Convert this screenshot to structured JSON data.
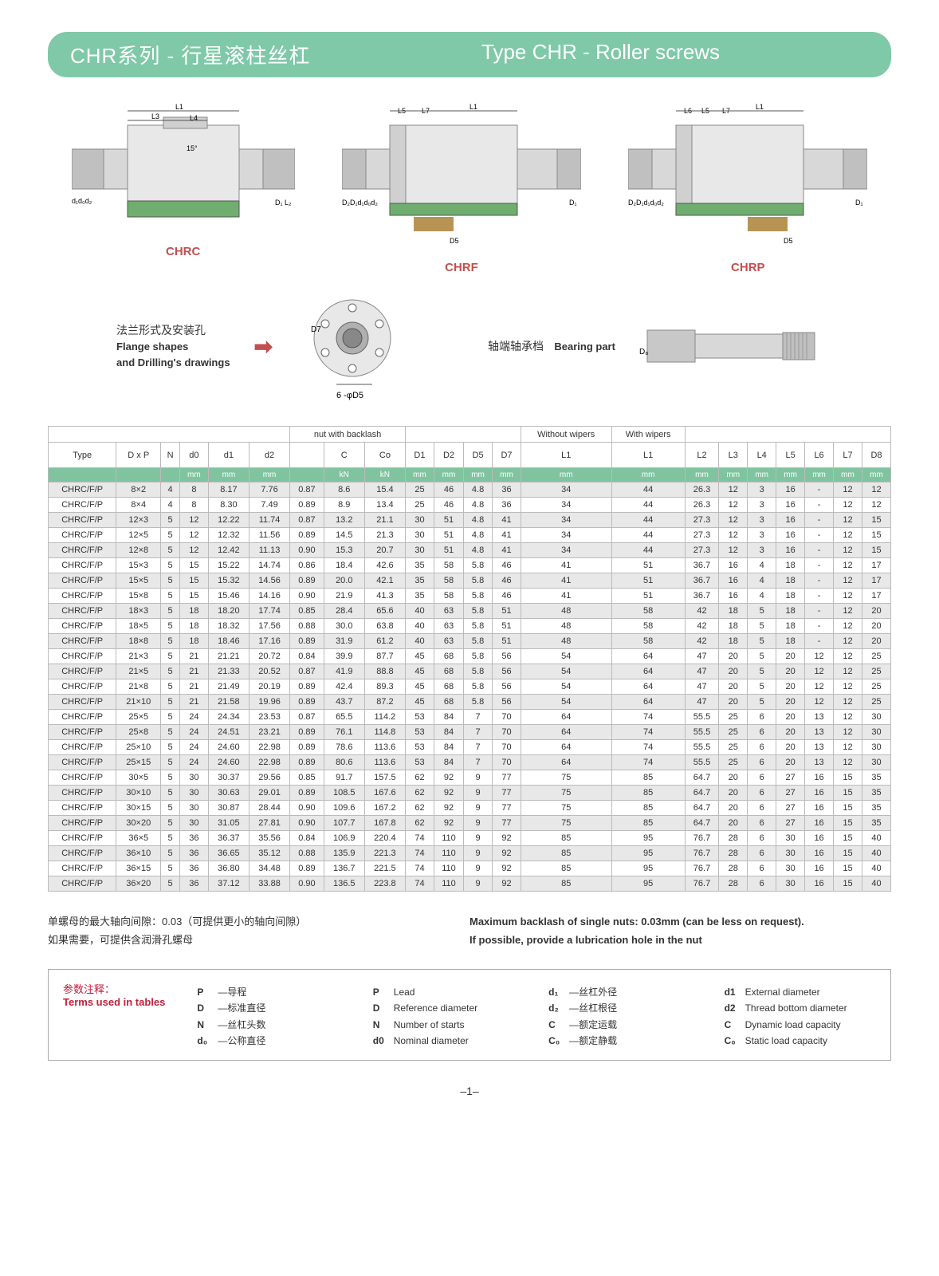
{
  "banner": {
    "cn": "CHR系列 - 行星滚柱丝杠",
    "en": "Type CHR - Roller screws"
  },
  "diagram_labels": {
    "chrc": "CHRC",
    "chrf": "CHRF",
    "chrp": "CHRP"
  },
  "flange": {
    "cn": "法兰形式及安装孔",
    "en1": "Flange shapes",
    "en2": "and Drilling's drawings"
  },
  "bearing": {
    "cn": "轴端轴承档",
    "en": "Bearing part"
  },
  "flange_dim_label": "6 -φD5",
  "table": {
    "group_headers": {
      "nut_backlash": "nut with backlash",
      "without_wipers": "Without wipers",
      "with_wipers": "With wipers"
    },
    "columns": [
      "Type",
      "D x P",
      "N",
      "d0",
      "d1",
      "d2",
      "",
      "C",
      "Co",
      "D1",
      "D2",
      "D5",
      "D7",
      "L1",
      "L1",
      "L2",
      "L3",
      "L4",
      "L5",
      "L6",
      "L7",
      "D8"
    ],
    "units": [
      "",
      "",
      "",
      "mm",
      "mm",
      "mm",
      "",
      "kN",
      "kN",
      "mm",
      "mm",
      "mm",
      "mm",
      "mm",
      "mm",
      "mm",
      "mm",
      "mm",
      "mm",
      "mm",
      "mm",
      "mm"
    ],
    "rows": [
      [
        "CHRC/F/P",
        "8×2",
        "4",
        "8",
        "8.17",
        "7.76",
        "0.87",
        "8.6",
        "15.4",
        "25",
        "46",
        "4.8",
        "36",
        "34",
        "44",
        "26.3",
        "12",
        "3",
        "16",
        "-",
        "12",
        "12"
      ],
      [
        "CHRC/F/P",
        "8×4",
        "4",
        "8",
        "8.30",
        "7.49",
        "0.89",
        "8.9",
        "13.4",
        "25",
        "46",
        "4.8",
        "36",
        "34",
        "44",
        "26.3",
        "12",
        "3",
        "16",
        "-",
        "12",
        "12"
      ],
      [
        "CHRC/F/P",
        "12×3",
        "5",
        "12",
        "12.22",
        "11.74",
        "0.87",
        "13.2",
        "21.1",
        "30",
        "51",
        "4.8",
        "41",
        "34",
        "44",
        "27.3",
        "12",
        "3",
        "16",
        "-",
        "12",
        "15"
      ],
      [
        "CHRC/F/P",
        "12×5",
        "5",
        "12",
        "12.32",
        "11.56",
        "0.89",
        "14.5",
        "21.3",
        "30",
        "51",
        "4.8",
        "41",
        "34",
        "44",
        "27.3",
        "12",
        "3",
        "16",
        "-",
        "12",
        "15"
      ],
      [
        "CHRC/F/P",
        "12×8",
        "5",
        "12",
        "12.42",
        "11.13",
        "0.90",
        "15.3",
        "20.7",
        "30",
        "51",
        "4.8",
        "41",
        "34",
        "44",
        "27.3",
        "12",
        "3",
        "16",
        "-",
        "12",
        "15"
      ],
      [
        "CHRC/F/P",
        "15×3",
        "5",
        "15",
        "15.22",
        "14.74",
        "0.86",
        "18.4",
        "42.6",
        "35",
        "58",
        "5.8",
        "46",
        "41",
        "51",
        "36.7",
        "16",
        "4",
        "18",
        "-",
        "12",
        "17"
      ],
      [
        "CHRC/F/P",
        "15×5",
        "5",
        "15",
        "15.32",
        "14.56",
        "0.89",
        "20.0",
        "42.1",
        "35",
        "58",
        "5.8",
        "46",
        "41",
        "51",
        "36.7",
        "16",
        "4",
        "18",
        "-",
        "12",
        "17"
      ],
      [
        "CHRC/F/P",
        "15×8",
        "5",
        "15",
        "15.46",
        "14.16",
        "0.90",
        "21.9",
        "41.3",
        "35",
        "58",
        "5.8",
        "46",
        "41",
        "51",
        "36.7",
        "16",
        "4",
        "18",
        "-",
        "12",
        "17"
      ],
      [
        "CHRC/F/P",
        "18×3",
        "5",
        "18",
        "18.20",
        "17.74",
        "0.85",
        "28.4",
        "65.6",
        "40",
        "63",
        "5.8",
        "51",
        "48",
        "58",
        "42",
        "18",
        "5",
        "18",
        "-",
        "12",
        "20"
      ],
      [
        "CHRC/F/P",
        "18×5",
        "5",
        "18",
        "18.32",
        "17.56",
        "0.88",
        "30.0",
        "63.8",
        "40",
        "63",
        "5.8",
        "51",
        "48",
        "58",
        "42",
        "18",
        "5",
        "18",
        "-",
        "12",
        "20"
      ],
      [
        "CHRC/F/P",
        "18×8",
        "5",
        "18",
        "18.46",
        "17.16",
        "0.89",
        "31.9",
        "61.2",
        "40",
        "63",
        "5.8",
        "51",
        "48",
        "58",
        "42",
        "18",
        "5",
        "18",
        "-",
        "12",
        "20"
      ],
      [
        "CHRC/F/P",
        "21×3",
        "5",
        "21",
        "21.21",
        "20.72",
        "0.84",
        "39.9",
        "87.7",
        "45",
        "68",
        "5.8",
        "56",
        "54",
        "64",
        "47",
        "20",
        "5",
        "20",
        "12",
        "12",
        "25"
      ],
      [
        "CHRC/F/P",
        "21×5",
        "5",
        "21",
        "21.33",
        "20.52",
        "0.87",
        "41.9",
        "88.8",
        "45",
        "68",
        "5.8",
        "56",
        "54",
        "64",
        "47",
        "20",
        "5",
        "20",
        "12",
        "12",
        "25"
      ],
      [
        "CHRC/F/P",
        "21×8",
        "5",
        "21",
        "21.49",
        "20.19",
        "0.89",
        "42.4",
        "89.3",
        "45",
        "68",
        "5.8",
        "56",
        "54",
        "64",
        "47",
        "20",
        "5",
        "20",
        "12",
        "12",
        "25"
      ],
      [
        "CHRC/F/P",
        "21×10",
        "5",
        "21",
        "21.58",
        "19.96",
        "0.89",
        "43.7",
        "87.2",
        "45",
        "68",
        "5.8",
        "56",
        "54",
        "64",
        "47",
        "20",
        "5",
        "20",
        "12",
        "12",
        "25"
      ],
      [
        "CHRC/F/P",
        "25×5",
        "5",
        "24",
        "24.34",
        "23.53",
        "0.87",
        "65.5",
        "114.2",
        "53",
        "84",
        "7",
        "70",
        "64",
        "74",
        "55.5",
        "25",
        "6",
        "20",
        "13",
        "12",
        "30"
      ],
      [
        "CHRC/F/P",
        "25×8",
        "5",
        "24",
        "24.51",
        "23.21",
        "0.89",
        "76.1",
        "114.8",
        "53",
        "84",
        "7",
        "70",
        "64",
        "74",
        "55.5",
        "25",
        "6",
        "20",
        "13",
        "12",
        "30"
      ],
      [
        "CHRC/F/P",
        "25×10",
        "5",
        "24",
        "24.60",
        "22.98",
        "0.89",
        "78.6",
        "113.6",
        "53",
        "84",
        "7",
        "70",
        "64",
        "74",
        "55.5",
        "25",
        "6",
        "20",
        "13",
        "12",
        "30"
      ],
      [
        "CHRC/F/P",
        "25×15",
        "5",
        "24",
        "24.60",
        "22.98",
        "0.89",
        "80.6",
        "113.6",
        "53",
        "84",
        "7",
        "70",
        "64",
        "74",
        "55.5",
        "25",
        "6",
        "20",
        "13",
        "12",
        "30"
      ],
      [
        "CHRC/F/P",
        "30×5",
        "5",
        "30",
        "30.37",
        "29.56",
        "0.85",
        "91.7",
        "157.5",
        "62",
        "92",
        "9",
        "77",
        "75",
        "85",
        "64.7",
        "20",
        "6",
        "27",
        "16",
        "15",
        "35"
      ],
      [
        "CHRC/F/P",
        "30×10",
        "5",
        "30",
        "30.63",
        "29.01",
        "0.89",
        "108.5",
        "167.6",
        "62",
        "92",
        "9",
        "77",
        "75",
        "85",
        "64.7",
        "20",
        "6",
        "27",
        "16",
        "15",
        "35"
      ],
      [
        "CHRC/F/P",
        "30×15",
        "5",
        "30",
        "30.87",
        "28.44",
        "0.90",
        "109.6",
        "167.2",
        "62",
        "92",
        "9",
        "77",
        "75",
        "85",
        "64.7",
        "20",
        "6",
        "27",
        "16",
        "15",
        "35"
      ],
      [
        "CHRC/F/P",
        "30×20",
        "5",
        "30",
        "31.05",
        "27.81",
        "0.90",
        "107.7",
        "167.8",
        "62",
        "92",
        "9",
        "77",
        "75",
        "85",
        "64.7",
        "20",
        "6",
        "27",
        "16",
        "15",
        "35"
      ],
      [
        "CHRC/F/P",
        "36×5",
        "5",
        "36",
        "36.37",
        "35.56",
        "0.84",
        "106.9",
        "220.4",
        "74",
        "110",
        "9",
        "92",
        "85",
        "95",
        "76.7",
        "28",
        "6",
        "30",
        "16",
        "15",
        "40"
      ],
      [
        "CHRC/F/P",
        "36×10",
        "5",
        "36",
        "36.65",
        "35.12",
        "0.88",
        "135.9",
        "221.3",
        "74",
        "110",
        "9",
        "92",
        "85",
        "95",
        "76.7",
        "28",
        "6",
        "30",
        "16",
        "15",
        "40"
      ],
      [
        "CHRC/F/P",
        "36×15",
        "5",
        "36",
        "36.80",
        "34.48",
        "0.89",
        "136.7",
        "221.5",
        "74",
        "110",
        "9",
        "92",
        "85",
        "95",
        "76.7",
        "28",
        "6",
        "30",
        "16",
        "15",
        "40"
      ],
      [
        "CHRC/F/P",
        "36×20",
        "5",
        "36",
        "37.12",
        "33.88",
        "0.90",
        "136.5",
        "223.8",
        "74",
        "110",
        "9",
        "92",
        "85",
        "95",
        "76.7",
        "28",
        "6",
        "30",
        "16",
        "15",
        "40"
      ]
    ]
  },
  "notes": {
    "backlash_cn": "单螺母的最大轴向间隙：0.03（可提供更小的轴向间隙）",
    "backlash_en": "Maximum backlash of single nuts: 0.03mm (can be less on request).",
    "lube_cn": "如果需要，可提供含润滑孔螺母",
    "lube_en": "If possible, provide a lubrication hole in the nut"
  },
  "terms": {
    "title_cn": "参数注释：",
    "title_en": "Terms used in tables",
    "col1": [
      {
        "sym": "P",
        "cn": "—导程"
      },
      {
        "sym": "D",
        "cn": "—标准直径"
      },
      {
        "sym": "N",
        "cn": "—丝杠头数"
      },
      {
        "sym": "d₀",
        "cn": "—公称直径"
      }
    ],
    "col2": [
      {
        "sym": "P",
        "en": "Lead"
      },
      {
        "sym": "D",
        "en": "Reference diameter"
      },
      {
        "sym": "N",
        "en": "Number of starts"
      },
      {
        "sym": "d0",
        "en": "Nominal diameter"
      }
    ],
    "col3": [
      {
        "sym": "d₁",
        "cn": "—丝杠外径"
      },
      {
        "sym": "d₂",
        "cn": "—丝杠根径"
      },
      {
        "sym": "C",
        "cn": "—额定运载"
      },
      {
        "sym": "C₀",
        "cn": "—额定静载"
      }
    ],
    "col4": [
      {
        "sym": "d1",
        "en": "External diameter"
      },
      {
        "sym": "d2",
        "en": "Thread bottom diameter"
      },
      {
        "sym": "C",
        "en": "Dynamic load capacity"
      },
      {
        "sym": "C₀",
        "en": "Static load capacity"
      }
    ]
  },
  "page_number": "–1–",
  "colors": {
    "banner": "#7fc9a8",
    "unit_row": "#7fc49f",
    "label_red": "#c24f4f",
    "terms_red": "#c41e3a",
    "row_alt": "#e8e8e8"
  }
}
